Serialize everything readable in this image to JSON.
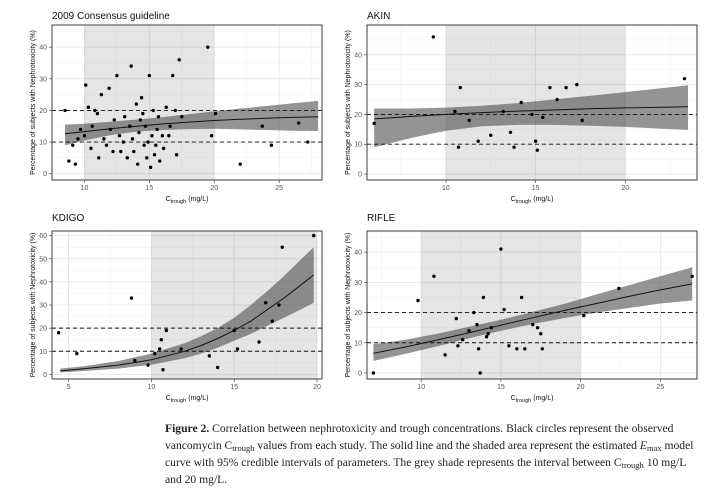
{
  "figure": {
    "caption_label": "Figure 2.",
    "caption_text": [
      {
        "t": " Correlation between nephrotoxicity and trough concentrations. Black circles represent the observed vancomycin C"
      },
      {
        "t": "trough",
        "sub": true
      },
      {
        "t": " values from each study. The solid line and the shaded area represent the estimated "
      },
      {
        "t": "E",
        "em": true
      },
      {
        "t": "max",
        "sub": true
      },
      {
        "t": " model curve with 95% credible intervals of parameters. The grey shade represents the interval between C"
      },
      {
        "t": "trough",
        "sub": true
      },
      {
        "t": " 10 mg/L and 20 mg/L."
      }
    ]
  },
  "chart_data": [
    {
      "type": "scatter",
      "title": "2009 Consensus guideline",
      "xlabel_main": "C",
      "xlabel_sub": "trough",
      "xlabel_unit": " (mg/L)",
      "ylabel": "Percentage of subjects with Nephrotoxicity (%)",
      "xlim": [
        7.5,
        28.3
      ],
      "ylim": [
        -2,
        47
      ],
      "xticks": [
        10,
        15,
        20,
        25
      ],
      "yticks": [
        0,
        10,
        20,
        30,
        40
      ],
      "shade": [
        10,
        20
      ],
      "hlines": [
        10,
        20
      ],
      "curve": {
        "x": [
          8.5,
          10,
          12,
          14,
          16,
          18,
          20,
          22,
          24,
          26,
          28
        ],
        "y": [
          12.6,
          13.3,
          14.2,
          15.0,
          15.7,
          16.3,
          16.8,
          17.2,
          17.5,
          17.8,
          18.0
        ],
        "lo": [
          9.0,
          10.5,
          12.2,
          13.3,
          13.8,
          14.1,
          14.2,
          14.0,
          13.8,
          13.6,
          13.5
        ],
        "hi": [
          15.5,
          15.8,
          16.4,
          17.1,
          17.9,
          18.8,
          19.7,
          20.6,
          21.4,
          22.2,
          23.0
        ]
      },
      "points": [
        [
          8.5,
          20
        ],
        [
          8.8,
          4
        ],
        [
          9.1,
          9
        ],
        [
          9.3,
          3
        ],
        [
          9.5,
          11
        ],
        [
          9.7,
          14
        ],
        [
          10,
          12
        ],
        [
          10.1,
          28
        ],
        [
          10.3,
          21
        ],
        [
          10.5,
          8
        ],
        [
          10.6,
          15
        ],
        [
          10.8,
          20
        ],
        [
          11,
          19
        ],
        [
          11.1,
          5
        ],
        [
          11.3,
          25
        ],
        [
          11.5,
          11
        ],
        [
          11.7,
          9
        ],
        [
          11.9,
          27
        ],
        [
          12,
          14
        ],
        [
          12.2,
          7
        ],
        [
          12.3,
          17
        ],
        [
          12.5,
          31
        ],
        [
          12.7,
          12
        ],
        [
          12.8,
          7
        ],
        [
          13,
          10
        ],
        [
          13.1,
          18
        ],
        [
          13.3,
          5
        ],
        [
          13.5,
          15
        ],
        [
          13.6,
          34
        ],
        [
          13.7,
          11
        ],
        [
          13.8,
          7
        ],
        [
          14,
          22
        ],
        [
          14.1,
          3
        ],
        [
          14.2,
          13
        ],
        [
          14.3,
          17
        ],
        [
          14.4,
          24
        ],
        [
          14.5,
          19
        ],
        [
          14.6,
          9
        ],
        [
          14.7,
          15
        ],
        [
          14.8,
          5
        ],
        [
          14.9,
          10
        ],
        [
          15,
          31
        ],
        [
          15.1,
          2
        ],
        [
          15.2,
          12
        ],
        [
          15.3,
          20
        ],
        [
          15.4,
          6
        ],
        [
          15.5,
          9
        ],
        [
          15.6,
          14
        ],
        [
          15.7,
          18
        ],
        [
          15.8,
          4
        ],
        [
          16,
          12
        ],
        [
          16.1,
          8
        ],
        [
          16.3,
          21
        ],
        [
          16.5,
          12
        ],
        [
          16.6,
          15
        ],
        [
          16.8,
          31
        ],
        [
          17,
          20
        ],
        [
          17.1,
          6
        ],
        [
          17.3,
          36
        ],
        [
          17.5,
          18
        ],
        [
          19.5,
          40
        ],
        [
          19.8,
          12
        ],
        [
          20.1,
          19
        ],
        [
          22,
          3
        ],
        [
          23.7,
          15
        ],
        [
          24.4,
          9
        ],
        [
          26.5,
          16
        ],
        [
          27.2,
          10
        ]
      ]
    },
    {
      "type": "scatter",
      "title": "AKIN",
      "xlabel_main": "C",
      "xlabel_sub": "trough",
      "xlabel_unit": " (mg/L)",
      "ylabel": "Percentage of subjects with Nephrotoxicity (%)",
      "xlim": [
        5.6,
        24
      ],
      "ylim": [
        -2,
        50
      ],
      "xticks": [
        10,
        15,
        20
      ],
      "yticks": [
        0,
        10,
        20,
        30,
        40
      ],
      "shade": [
        10,
        20
      ],
      "hlines": [
        10,
        20
      ],
      "curve": {
        "x": [
          6,
          8,
          10,
          12,
          14,
          16,
          18,
          20,
          22,
          23.5
        ],
        "y": [
          18.5,
          19.3,
          20.0,
          20.6,
          21.1,
          21.5,
          21.9,
          22.2,
          22.4,
          22.6
        ],
        "lo": [
          9.0,
          12.0,
          14.5,
          16.0,
          16.5,
          16.5,
          16.2,
          15.8,
          15.2,
          14.8
        ],
        "hi": [
          22.0,
          22.0,
          22.3,
          22.9,
          23.8,
          25.0,
          26.2,
          27.5,
          28.8,
          29.8
        ]
      },
      "points": [
        [
          6,
          17
        ],
        [
          9.3,
          46
        ],
        [
          10.5,
          21
        ],
        [
          10.7,
          9
        ],
        [
          10.8,
          29
        ],
        [
          11.3,
          18
        ],
        [
          11.8,
          11
        ],
        [
          12.5,
          13
        ],
        [
          13.2,
          21
        ],
        [
          13.6,
          14
        ],
        [
          13.8,
          9
        ],
        [
          14.2,
          24
        ],
        [
          14.8,
          20
        ],
        [
          15,
          11
        ],
        [
          15.1,
          8
        ],
        [
          15.4,
          19
        ],
        [
          15.8,
          29
        ],
        [
          16.2,
          25
        ],
        [
          16.7,
          29
        ],
        [
          17.3,
          30
        ],
        [
          17.6,
          18
        ],
        [
          23.3,
          32
        ]
      ]
    },
    {
      "type": "scatter",
      "title": "KDIGO",
      "xlabel_main": "C",
      "xlabel_sub": "trough",
      "xlabel_unit": " (mg/L)",
      "ylabel": "Percentage of subjects with Nephrotoxicity (%)",
      "xlim": [
        4,
        20.3
      ],
      "ylim": [
        -2,
        62
      ],
      "xticks": [
        5,
        10,
        15,
        20
      ],
      "yticks": [
        0,
        10,
        20,
        30,
        40,
        50,
        60
      ],
      "shade": [
        10,
        20
      ],
      "hlines": [
        10,
        20
      ],
      "curve": {
        "x": [
          4.5,
          6,
          8,
          10,
          12,
          13,
          14,
          15,
          16,
          17,
          18,
          19,
          19.8
        ],
        "y": [
          1.5,
          2.5,
          4.0,
          6.3,
          10.0,
          12.5,
          15.5,
          19.0,
          23.0,
          28.0,
          33.0,
          38.5,
          43.0
        ],
        "lo": [
          0.8,
          1.5,
          2.5,
          4.2,
          7.0,
          9.0,
          11.5,
          14.5,
          17.5,
          21.0,
          24.5,
          28.0,
          31.0
        ],
        "hi": [
          2.5,
          3.6,
          5.8,
          9.0,
          13.5,
          16.5,
          20.0,
          24.5,
          30.0,
          36.0,
          42.5,
          49.5,
          55.0
        ]
      },
      "points": [
        [
          4.4,
          18
        ],
        [
          5.5,
          9
        ],
        [
          8.8,
          33
        ],
        [
          9,
          6
        ],
        [
          9.8,
          4
        ],
        [
          10.2,
          9
        ],
        [
          10.5,
          11
        ],
        [
          10.6,
          15
        ],
        [
          10.7,
          2
        ],
        [
          10.9,
          19
        ],
        [
          11.8,
          11
        ],
        [
          13.5,
          8
        ],
        [
          14,
          3
        ],
        [
          15,
          19
        ],
        [
          15.2,
          11
        ],
        [
          16.5,
          14
        ],
        [
          16.9,
          31
        ],
        [
          17.3,
          23
        ],
        [
          17.7,
          30
        ],
        [
          17.9,
          55
        ],
        [
          19.8,
          60
        ]
      ]
    },
    {
      "type": "scatter",
      "title": "RIFLE",
      "xlabel_main": "C",
      "xlabel_sub": "trough",
      "xlabel_unit": " (mg/L)",
      "ylabel": "Percentage of subjects with Nephrotoxicity (%)",
      "xlim": [
        6.6,
        27.3
      ],
      "ylim": [
        -2,
        47
      ],
      "xticks": [
        10,
        15,
        20,
        25
      ],
      "yticks": [
        0,
        10,
        20,
        30,
        40
      ],
      "shade": [
        10,
        20
      ],
      "hlines": [
        10,
        20
      ],
      "curve": {
        "x": [
          7,
          9,
          11,
          13,
          15,
          17,
          19,
          21,
          23,
          25,
          27
        ],
        "y": [
          6.5,
          8.6,
          10.9,
          13.3,
          15.8,
          18.3,
          20.7,
          23.0,
          25.3,
          27.5,
          29.5
        ],
        "lo": [
          4.0,
          6.3,
          8.8,
          11.5,
          14.0,
          16.2,
          18.2,
          20.0,
          21.5,
          23.0,
          24.0
        ],
        "hi": [
          9.5,
          11.0,
          13.0,
          15.3,
          17.6,
          20.2,
          22.9,
          26.0,
          29.0,
          32.0,
          35.0
        ]
      },
      "points": [
        [
          7,
          0
        ],
        [
          9.8,
          24
        ],
        [
          10.8,
          32
        ],
        [
          11.5,
          6
        ],
        [
          12.2,
          18
        ],
        [
          12.3,
          9
        ],
        [
          12.6,
          11
        ],
        [
          13,
          14
        ],
        [
          13.3,
          20
        ],
        [
          13.5,
          16
        ],
        [
          13.6,
          8
        ],
        [
          13.7,
          0
        ],
        [
          13.9,
          25
        ],
        [
          14.1,
          12
        ],
        [
          14.2,
          13
        ],
        [
          14.4,
          15
        ],
        [
          15,
          41
        ],
        [
          15.2,
          21
        ],
        [
          15.5,
          9
        ],
        [
          16,
          8
        ],
        [
          16.3,
          25
        ],
        [
          16.5,
          8
        ],
        [
          17,
          16
        ],
        [
          17.3,
          15
        ],
        [
          17.5,
          13
        ],
        [
          17.6,
          8
        ],
        [
          20.2,
          19
        ],
        [
          22.4,
          28
        ],
        [
          27,
          32
        ]
      ]
    }
  ]
}
